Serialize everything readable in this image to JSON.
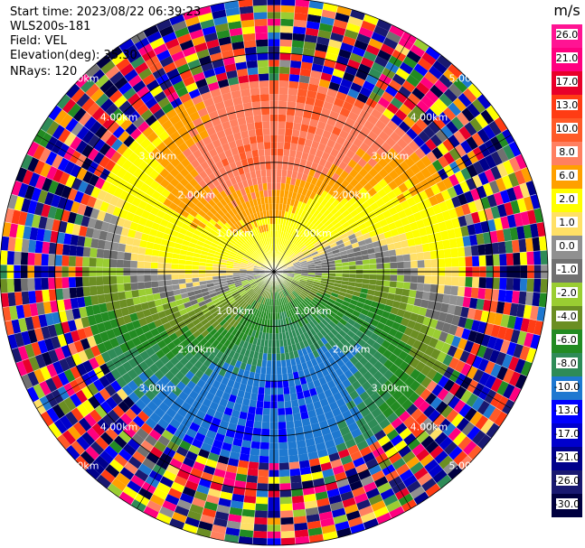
{
  "header": {
    "start_time": "Start time: 2023/08/22 06:39:23",
    "instrument": "WLS200s-181",
    "field": "Field: VEL",
    "elevation": "Elevation(deg): 35.30",
    "nrays": "NRays: 120"
  },
  "chart_data": {
    "type": "heatmap",
    "projection": "polar (PPI)",
    "field": "VEL",
    "nrays": 120,
    "max_range_km": 5.0,
    "range_rings_km": [
      1.0,
      2.0,
      3.0,
      4.0,
      5.0
    ],
    "ring_labels": [
      "1.00km",
      "2.00km",
      "3.00km",
      "4.00km",
      "5.00km"
    ],
    "colorbar": {
      "unit": "m/s",
      "ticks": [
        "26.0",
        "21.0",
        "17.0",
        "13.0",
        "10.0",
        "8.0",
        "6.0",
        "2.0",
        "1.0",
        "0.0",
        "-1.0",
        "-2.0",
        "-4.0",
        "-6.0",
        "-8.0",
        "-10.0",
        "-13.0",
        "-17.0",
        "-21.0",
        "-26.0",
        "-30.0"
      ],
      "colors": [
        "#ff1493",
        "#ff007f",
        "#e8002a",
        "#ff3c14",
        "#ff5a28",
        "#ff8060",
        "#ffa000",
        "#ffff00",
        "#ffe066",
        "#909090",
        "#707070",
        "#9acd32",
        "#6b8e23",
        "#228b22",
        "#2e8b57",
        "#1e78d0",
        "#0000ff",
        "#0000cd",
        "#00008b",
        "#191970",
        "#000040"
      ]
    },
    "velocity_pattern": {
      "inbound_direction_deg": 180,
      "outbound_direction_deg": 0,
      "max_abs_velocity_ms": 10.0,
      "valid_range_km": 3.5
    }
  }
}
